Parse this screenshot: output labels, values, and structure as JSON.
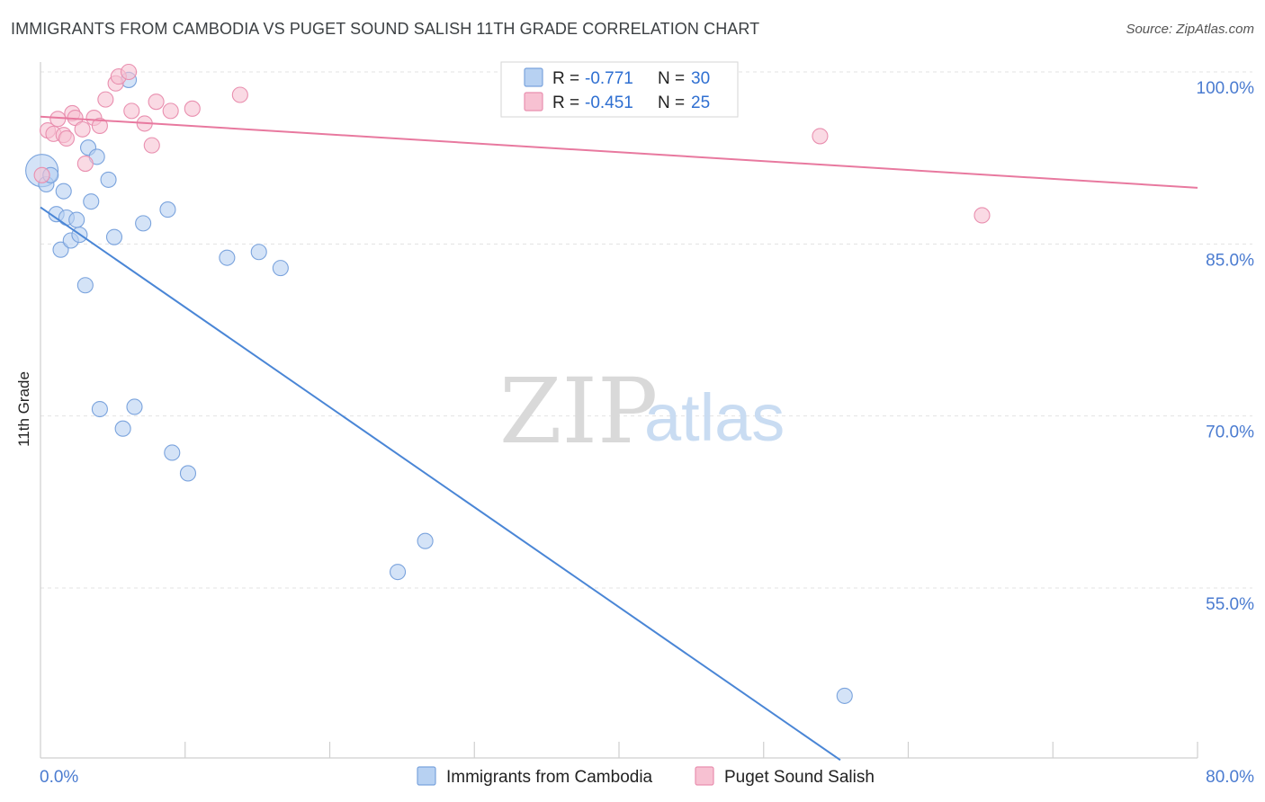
{
  "title": "IMMIGRANTS FROM CAMBODIA VS PUGET SOUND SALISH 11TH GRADE CORRELATION CHART",
  "source": "Source: ZipAtlas.com",
  "watermark": {
    "zip": "ZIP",
    "atlas": "atlas"
  },
  "legend": {
    "r_label": "R =",
    "n_label": "N =",
    "series": [
      {
        "name": "Immigrants from Cambodia",
        "r": "-0.771",
        "n": "30",
        "fill": "#b7d1f2",
        "stroke": "#7aa3dd"
      },
      {
        "name": "Puget Sound Salish",
        "r": "-0.451",
        "n": "25",
        "fill": "#f7c1d2",
        "stroke": "#e98faf"
      }
    ]
  },
  "chart_data": {
    "type": "scatter",
    "title": "IMMIGRANTS FROM CAMBODIA VS PUGET SOUND SALISH 11TH GRADE CORRELATION CHART",
    "xlabel": "",
    "ylabel": "11th Grade",
    "xlim": [
      0,
      80
    ],
    "ylim": [
      40,
      101
    ],
    "x_tick_labels": [
      "0.0%",
      "80.0%"
    ],
    "y_ticks": [
      {
        "value": 55,
        "label": "55.0%"
      },
      {
        "value": 70,
        "label": "70.0%"
      },
      {
        "value": 85,
        "label": "85.0%"
      },
      {
        "value": 100,
        "label": "100.0%"
      }
    ],
    "grid": true,
    "series": [
      {
        "name": "Immigrants from Cambodia",
        "color": "#4a86d6",
        "trend": {
          "x": [
            0,
            55.3
          ],
          "y": [
            88.2,
            40
          ]
        },
        "points": [
          {
            "x": 0.1,
            "y": 91.4,
            "big": true
          },
          {
            "x": 0.4,
            "y": 90.2
          },
          {
            "x": 0.7,
            "y": 91.0
          },
          {
            "x": 1.1,
            "y": 87.6
          },
          {
            "x": 1.4,
            "y": 84.5
          },
          {
            "x": 1.6,
            "y": 89.6
          },
          {
            "x": 1.8,
            "y": 87.3
          },
          {
            "x": 2.1,
            "y": 85.3
          },
          {
            "x": 2.5,
            "y": 87.1
          },
          {
            "x": 2.7,
            "y": 85.8
          },
          {
            "x": 3.1,
            "y": 81.4
          },
          {
            "x": 3.3,
            "y": 93.4
          },
          {
            "x": 3.5,
            "y": 88.7
          },
          {
            "x": 3.9,
            "y": 92.6
          },
          {
            "x": 4.1,
            "y": 70.6
          },
          {
            "x": 4.7,
            "y": 90.6
          },
          {
            "x": 5.1,
            "y": 85.6
          },
          {
            "x": 5.7,
            "y": 68.9
          },
          {
            "x": 6.1,
            "y": 99.3
          },
          {
            "x": 6.5,
            "y": 70.8
          },
          {
            "x": 7.1,
            "y": 86.8
          },
          {
            "x": 8.8,
            "y": 88.0
          },
          {
            "x": 9.1,
            "y": 66.8
          },
          {
            "x": 10.2,
            "y": 65.0
          },
          {
            "x": 12.9,
            "y": 83.8
          },
          {
            "x": 15.1,
            "y": 84.3
          },
          {
            "x": 16.6,
            "y": 82.9
          },
          {
            "x": 24.7,
            "y": 56.4
          },
          {
            "x": 26.6,
            "y": 59.1
          },
          {
            "x": 55.6,
            "y": 45.6
          }
        ]
      },
      {
        "name": "Puget Sound Salish",
        "color": "#e8799f",
        "trend": {
          "x": [
            0,
            80
          ],
          "y": [
            96.1,
            89.9
          ]
        },
        "points": [
          {
            "x": 0.1,
            "y": 91.0
          },
          {
            "x": 0.5,
            "y": 94.9
          },
          {
            "x": 0.9,
            "y": 94.6
          },
          {
            "x": 1.2,
            "y": 95.9
          },
          {
            "x": 1.6,
            "y": 94.5
          },
          {
            "x": 1.8,
            "y": 94.2
          },
          {
            "x": 2.2,
            "y": 96.4
          },
          {
            "x": 2.4,
            "y": 96.0
          },
          {
            "x": 2.9,
            "y": 95.0
          },
          {
            "x": 3.1,
            "y": 92.0
          },
          {
            "x": 3.7,
            "y": 96.0
          },
          {
            "x": 4.1,
            "y": 95.3
          },
          {
            "x": 4.5,
            "y": 97.6
          },
          {
            "x": 5.2,
            "y": 99.0
          },
          {
            "x": 5.4,
            "y": 99.6
          },
          {
            "x": 6.1,
            "y": 100.0
          },
          {
            "x": 6.3,
            "y": 96.6
          },
          {
            "x": 7.2,
            "y": 95.5
          },
          {
            "x": 7.7,
            "y": 93.6
          },
          {
            "x": 8.0,
            "y": 97.4
          },
          {
            "x": 9.0,
            "y": 96.6
          },
          {
            "x": 10.5,
            "y": 96.8
          },
          {
            "x": 13.8,
            "y": 98.0
          },
          {
            "x": 53.9,
            "y": 94.4
          },
          {
            "x": 65.1,
            "y": 87.5
          }
        ]
      }
    ]
  }
}
